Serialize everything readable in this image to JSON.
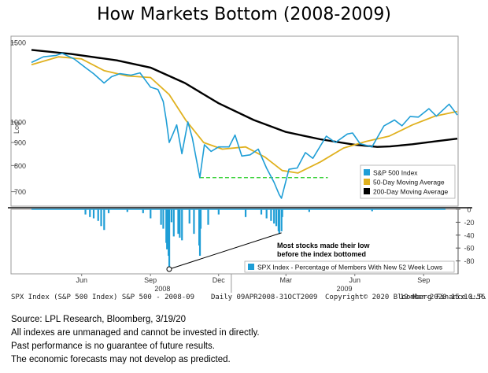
{
  "title": "How Markets Bottom (2008-2009)",
  "chart_data": [
    {
      "type": "line",
      "panel": "price",
      "ylabel": "Log",
      "yscale": "log",
      "ylim": [
        650,
        1550
      ],
      "y_ticks": [
        1500,
        1000,
        900,
        800,
        700
      ],
      "x_range": [
        "2008-04-09",
        "2009-10-31"
      ],
      "legend_position": "bottom-right",
      "series": [
        {
          "name": "S&P 500 Index",
          "color": "#1f9ed6",
          "points": [
            [
              "2008-04-09",
              1355
            ],
            [
              "2008-04-25",
              1395
            ],
            [
              "2008-05-12",
              1405
            ],
            [
              "2008-05-20",
              1420
            ],
            [
              "2008-06-05",
              1380
            ],
            [
              "2008-06-20",
              1320
            ],
            [
              "2008-07-01",
              1280
            ],
            [
              "2008-07-15",
              1220
            ],
            [
              "2008-07-25",
              1260
            ],
            [
              "2008-08-05",
              1280
            ],
            [
              "2008-08-20",
              1270
            ],
            [
              "2008-09-01",
              1285
            ],
            [
              "2008-09-15",
              1195
            ],
            [
              "2008-09-25",
              1180
            ],
            [
              "2008-10-02",
              1110
            ],
            [
              "2008-10-06",
              1010
            ],
            [
              "2008-10-10",
              900
            ],
            [
              "2008-10-15",
              940
            ],
            [
              "2008-10-20",
              985
            ],
            [
              "2008-10-27",
              850
            ],
            [
              "2008-11-04",
              1000
            ],
            [
              "2008-11-10",
              920
            ],
            [
              "2008-11-20",
              752
            ],
            [
              "2008-11-26",
              890
            ],
            [
              "2008-12-05",
              860
            ],
            [
              "2008-12-15",
              880
            ],
            [
              "2008-12-29",
              880
            ],
            [
              "2009-01-06",
              935
            ],
            [
              "2009-01-15",
              840
            ],
            [
              "2009-01-26",
              845
            ],
            [
              "2009-02-06",
              870
            ],
            [
              "2009-02-17",
              790
            ],
            [
              "2009-02-27",
              735
            ],
            [
              "2009-03-06",
              690
            ],
            [
              "2009-03-09",
              677
            ],
            [
              "2009-03-19",
              785
            ],
            [
              "2009-03-30",
              790
            ],
            [
              "2009-04-10",
              855
            ],
            [
              "2009-04-20",
              830
            ],
            [
              "2009-05-08",
              930
            ],
            [
              "2009-05-20",
              900
            ],
            [
              "2009-06-05",
              940
            ],
            [
              "2009-06-12",
              945
            ],
            [
              "2009-06-22",
              895
            ],
            [
              "2009-07-08",
              880
            ],
            [
              "2009-07-24",
              980
            ],
            [
              "2009-08-07",
              1010
            ],
            [
              "2009-08-17",
              980
            ],
            [
              "2009-08-28",
              1028
            ],
            [
              "2009-09-08",
              1025
            ],
            [
              "2009-09-22",
              1070
            ],
            [
              "2009-10-02",
              1030
            ],
            [
              "2009-10-19",
              1095
            ],
            [
              "2009-10-30",
              1036
            ]
          ]
        },
        {
          "name": "50-Day Moving Average",
          "color": "#e0b11f",
          "points": [
            [
              "2008-04-09",
              1340
            ],
            [
              "2008-05-15",
              1395
            ],
            [
              "2008-06-15",
              1380
            ],
            [
              "2008-07-15",
              1300
            ],
            [
              "2008-08-15",
              1265
            ],
            [
              "2008-09-15",
              1255
            ],
            [
              "2008-10-10",
              1150
            ],
            [
              "2008-11-01",
              1010
            ],
            [
              "2008-11-25",
              900
            ],
            [
              "2008-12-20",
              870
            ],
            [
              "2009-01-20",
              880
            ],
            [
              "2009-02-15",
              835
            ],
            [
              "2009-03-10",
              780
            ],
            [
              "2009-03-31",
              770
            ],
            [
              "2009-04-30",
              815
            ],
            [
              "2009-05-31",
              875
            ],
            [
              "2009-06-30",
              905
            ],
            [
              "2009-07-31",
              930
            ],
            [
              "2009-08-31",
              985
            ],
            [
              "2009-09-30",
              1030
            ],
            [
              "2009-10-30",
              1055
            ]
          ]
        },
        {
          "name": "200-Day Moving Average",
          "color": "#000000",
          "points": [
            [
              "2008-04-09",
              1445
            ],
            [
              "2008-06-01",
              1415
            ],
            [
              "2008-08-01",
              1370
            ],
            [
              "2008-09-15",
              1320
            ],
            [
              "2008-10-31",
              1220
            ],
            [
              "2008-12-15",
              1100
            ],
            [
              "2009-01-31",
              1010
            ],
            [
              "2009-03-15",
              950
            ],
            [
              "2009-04-30",
              915
            ],
            [
              "2009-06-15",
              890
            ],
            [
              "2009-07-15",
              880
            ],
            [
              "2009-08-01",
              882
            ],
            [
              "2009-08-31",
              892
            ],
            [
              "2009-09-30",
              905
            ],
            [
              "2009-10-30",
              918
            ]
          ]
        }
      ],
      "support_line": {
        "value": 752,
        "from": "2008-11-20",
        "to": "2009-05-10",
        "color": "#22cc22"
      }
    },
    {
      "type": "bar",
      "panel": "breadth",
      "ylim": [
        -100,
        0
      ],
      "y_ticks": [
        0,
        -20,
        -40,
        -60,
        -80
      ],
      "series": [
        {
          "name": "SPX Index - Percentage of Members With New 52 Week Lows",
          "color": "#1f9ed6",
          "points": [
            [
              "2008-06-20",
              -8
            ],
            [
              "2008-06-26",
              -12
            ],
            [
              "2008-07-01",
              -14
            ],
            [
              "2008-07-07",
              -18
            ],
            [
              "2008-07-11",
              -26
            ],
            [
              "2008-07-15",
              -32
            ],
            [
              "2008-07-21",
              -6
            ],
            [
              "2008-08-15",
              -4
            ],
            [
              "2008-09-05",
              -6
            ],
            [
              "2008-09-15",
              -14
            ],
            [
              "2008-09-29",
              -24
            ],
            [
              "2008-10-02",
              -30
            ],
            [
              "2008-10-06",
              -52
            ],
            [
              "2008-10-07",
              -62
            ],
            [
              "2008-10-09",
              -72
            ],
            [
              "2008-10-10",
              -90
            ],
            [
              "2008-10-13",
              -20
            ],
            [
              "2008-10-16",
              -42
            ],
            [
              "2008-10-22",
              -38
            ],
            [
              "2008-10-24",
              -44
            ],
            [
              "2008-10-27",
              -48
            ],
            [
              "2008-11-06",
              -22
            ],
            [
              "2008-11-12",
              -38
            ],
            [
              "2008-11-19",
              -56
            ],
            [
              "2008-11-20",
              -72
            ],
            [
              "2008-11-21",
              -30
            ],
            [
              "2008-12-01",
              -24
            ],
            [
              "2008-12-15",
              -8
            ],
            [
              "2009-01-20",
              -12
            ],
            [
              "2009-02-10",
              -8
            ],
            [
              "2009-02-17",
              -14
            ],
            [
              "2009-02-23",
              -18
            ],
            [
              "2009-02-27",
              -22
            ],
            [
              "2009-03-02",
              -26
            ],
            [
              "2009-03-05",
              -34
            ],
            [
              "2009-03-06",
              -38
            ],
            [
              "2009-03-09",
              -34
            ],
            [
              "2009-03-10",
              -12
            ],
            [
              "2009-04-15",
              -4
            ],
            [
              "2009-07-08",
              -3
            ]
          ]
        }
      ]
    }
  ],
  "x_axis": {
    "month_labels": [
      {
        "label": "Jun",
        "date": "2008-06-15"
      },
      {
        "label": "Sep",
        "date": "2008-09-15"
      },
      {
        "label": "Dec",
        "date": "2008-12-15"
      },
      {
        "label": "Mar",
        "date": "2009-03-15"
      },
      {
        "label": "Jun",
        "date": "2009-06-15"
      },
      {
        "label": "Sep",
        "date": "2009-09-15"
      }
    ],
    "year_labels": [
      {
        "label": "2008",
        "date": "2008-10-01"
      },
      {
        "label": "2009",
        "date": "2009-06-01"
      }
    ]
  },
  "annotation": {
    "line1": "Most stocks made their low",
    "line2": "before the index bottomed",
    "from_date": "2008-10-10",
    "to_date": "2009-03-09",
    "to_value": -34
  },
  "footer": {
    "left": "SPX Index (S&P 500 Index) S&P 500 - 2008-09",
    "range": "Daily 09APR2008-31OCT2009",
    "copyright": "Copyright© 2020 Bloomberg Finance L.P.",
    "timestamp": "19-Mar-2020 15:10:56"
  },
  "notes": [
    "Source: LPL Research, Bloomberg, 3/19/20",
    "All indexes are unmanaged and cannot be invested in directly.",
    "Past performance is no guarantee of future results.",
    "The economic forecasts may not develop as predicted."
  ]
}
